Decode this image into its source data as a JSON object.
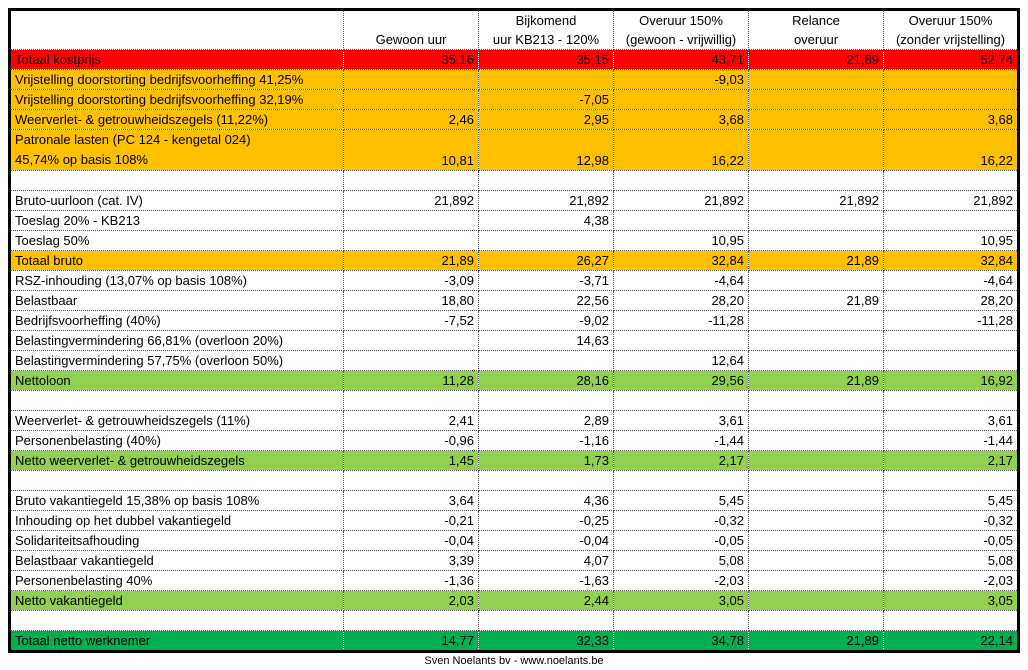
{
  "colors": {
    "red": "#FF0000",
    "orange": "#FFC000",
    "light_green": "#92D050",
    "dark_green": "#00B050",
    "border": "#000000"
  },
  "columns": [
    {
      "line1": "",
      "line2": ""
    },
    {
      "line1": "",
      "line2": "Gewoon uur"
    },
    {
      "line1": "Bijkomend",
      "line2": "uur KB213 - 120%"
    },
    {
      "line1": "Overuur 150%",
      "line2": "(gewoon - vrijwillig)"
    },
    {
      "line1": "Relance",
      "line2": "overuur"
    },
    {
      "line1": "Overuur 150%",
      "line2": "(zonder vrijstelling)"
    }
  ],
  "rows": [
    {
      "label": "Totaal kostprijs",
      "style": "red",
      "values": [
        "35,16",
        "35,15",
        "43,71",
        "21,89",
        "52,74"
      ]
    },
    {
      "label": "Vrijstelling doorstorting bedrijfsvoorheffing 41,25%",
      "style": "orange",
      "values": [
        "",
        "",
        "-9,03",
        "",
        ""
      ]
    },
    {
      "label": "Vrijstelling doorstorting bedrijfsvoorheffing 32,19%",
      "style": "orange",
      "values": [
        "",
        "-7,05",
        "",
        "",
        ""
      ]
    },
    {
      "label": "Weerverlet- & getrouwheidszegels (11,22%)",
      "style": "orange",
      "values": [
        "2,46",
        "2,95",
        "3,68",
        "",
        "3,68"
      ]
    },
    {
      "label": "Patronale lasten (PC 124 - kengetal 024)",
      "label2": "45,74% op basis 108%",
      "style": "orange",
      "tall": true,
      "values": [
        "10,81",
        "12,98",
        "16,22",
        "",
        "16,22"
      ]
    },
    {
      "style": "empty",
      "values": [
        "",
        "",
        "",
        "",
        ""
      ]
    },
    {
      "label": "Bruto-uurloon (cat. IV)",
      "values": [
        "21,892",
        "21,892",
        "21,892",
        "21,892",
        "21,892"
      ]
    },
    {
      "label": "Toeslag 20% - KB213",
      "values": [
        "",
        "4,38",
        "",
        "",
        ""
      ]
    },
    {
      "label": "Toeslag 50%",
      "values": [
        "",
        "",
        "10,95",
        "",
        "10,95"
      ]
    },
    {
      "label": "Totaal bruto",
      "style": "orange",
      "values": [
        "21,89",
        "26,27",
        "32,84",
        "21,89",
        "32,84"
      ]
    },
    {
      "label": "RSZ-inhouding (13,07% op basis 108%)",
      "values": [
        "-3,09",
        "-3,71",
        "-4,64",
        "",
        "-4,64"
      ]
    },
    {
      "label": "Belastbaar",
      "values": [
        "18,80",
        "22,56",
        "28,20",
        "21,89",
        "28,20"
      ]
    },
    {
      "label": "Bedrijfsvoorheffing (40%)",
      "values": [
        "-7,52",
        "-9,02",
        "-11,28",
        "",
        "-11,28"
      ]
    },
    {
      "label": "Belastingvermindering 66,81% (overloon 20%)",
      "values": [
        "",
        "14,63",
        "",
        "",
        ""
      ]
    },
    {
      "label": "Belastingvermindering 57,75% (overloon 50%)",
      "values": [
        "",
        "",
        "12,64",
        "",
        ""
      ]
    },
    {
      "label": "Nettoloon",
      "style": "light_green",
      "values": [
        "11,28",
        "28,16",
        "29,56",
        "21,89",
        "16,92"
      ]
    },
    {
      "style": "empty",
      "values": [
        "",
        "",
        "",
        "",
        ""
      ]
    },
    {
      "label": "Weerverlet- & getrouwheidszegels (11%)",
      "values": [
        "2,41",
        "2,89",
        "3,61",
        "",
        "3,61"
      ]
    },
    {
      "label": "Personenbelasting (40%)",
      "values": [
        "-0,96",
        "-1,16",
        "-1,44",
        "",
        "-1,44"
      ]
    },
    {
      "label": "Netto weerverlet- & getrouwheidszegels",
      "style": "light_green",
      "values": [
        "1,45",
        "1,73",
        "2,17",
        "",
        "2,17"
      ]
    },
    {
      "style": "empty",
      "values": [
        "",
        "",
        "",
        "",
        ""
      ]
    },
    {
      "label": "Bruto vakantiegeld 15,38% op basis 108%",
      "values": [
        "3,64",
        "4,36",
        "5,45",
        "",
        "5,45"
      ]
    },
    {
      "label": "Inhouding op het dubbel vakantiegeld",
      "values": [
        "-0,21",
        "-0,25",
        "-0,32",
        "",
        "-0,32"
      ]
    },
    {
      "label": "Solidariteitsafhouding",
      "values": [
        "-0,04",
        "-0,04",
        "-0,05",
        "",
        "-0,05"
      ]
    },
    {
      "label": "Belastbaar vakantiegeld",
      "values": [
        "3,39",
        "4,07",
        "5,08",
        "",
        "5,08"
      ]
    },
    {
      "label": "Personenbelasting 40%",
      "values": [
        "-1,36",
        "-1,63",
        "-2,03",
        "",
        "-2,03"
      ]
    },
    {
      "label": "Netto vakantiegeld",
      "style": "light_green",
      "values": [
        "2,03",
        "2,44",
        "3,05",
        "",
        "3,05"
      ]
    },
    {
      "style": "empty",
      "values": [
        "",
        "",
        "",
        "",
        ""
      ]
    },
    {
      "label": "Totaal netto werknemer",
      "style": "dark_green",
      "values": [
        "14,77",
        "32,33",
        "34,78",
        "21,89",
        "22,14"
      ]
    }
  ],
  "footer": "Sven Noelants bv - www.noelants.be"
}
